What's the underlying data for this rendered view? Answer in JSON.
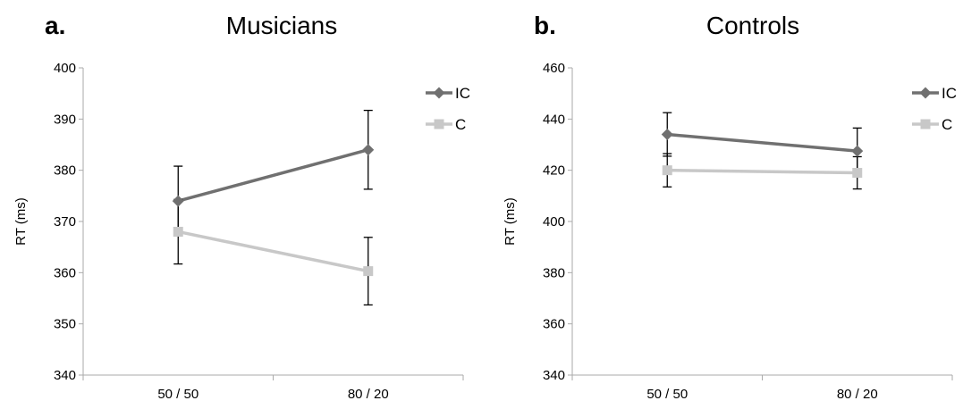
{
  "colors": {
    "ic": "#707070",
    "c": "#c8c8c8",
    "axis": "#aaaaaa",
    "errorbar": "#000000"
  },
  "chart_data": [
    {
      "type": "line",
      "panel_letter": "a.",
      "title": "Musicians",
      "ylabel": "RT (ms)",
      "xlabel": "",
      "categories": [
        "50 / 50",
        "80 / 20"
      ],
      "ylim": [
        340,
        400
      ],
      "yticks": [
        340,
        350,
        360,
        370,
        380,
        390,
        400
      ],
      "grid": false,
      "legend_position": "top-right",
      "series": [
        {
          "name": "IC",
          "key": "ic",
          "marker": "diamond",
          "values": [
            374,
            384
          ],
          "errors": [
            6.8,
            7.7
          ]
        },
        {
          "name": "C",
          "key": "c",
          "marker": "square",
          "values": [
            368,
            360.3
          ],
          "errors": [
            6.3,
            6.6
          ]
        }
      ]
    },
    {
      "type": "line",
      "panel_letter": "b.",
      "title": "Controls",
      "ylabel": "RT (ms)",
      "xlabel": "",
      "categories": [
        "50 / 50",
        "80 / 20"
      ],
      "ylim": [
        340,
        460
      ],
      "yticks": [
        340,
        360,
        380,
        400,
        420,
        440,
        460
      ],
      "grid": false,
      "legend_position": "top-right",
      "series": [
        {
          "name": "IC",
          "key": "ic",
          "marker": "diamond",
          "values": [
            434,
            427.5
          ],
          "errors": [
            8.5,
            9
          ]
        },
        {
          "name": "C",
          "key": "c",
          "marker": "square",
          "values": [
            420,
            419
          ],
          "errors": [
            6.5,
            6.3
          ]
        }
      ]
    }
  ]
}
